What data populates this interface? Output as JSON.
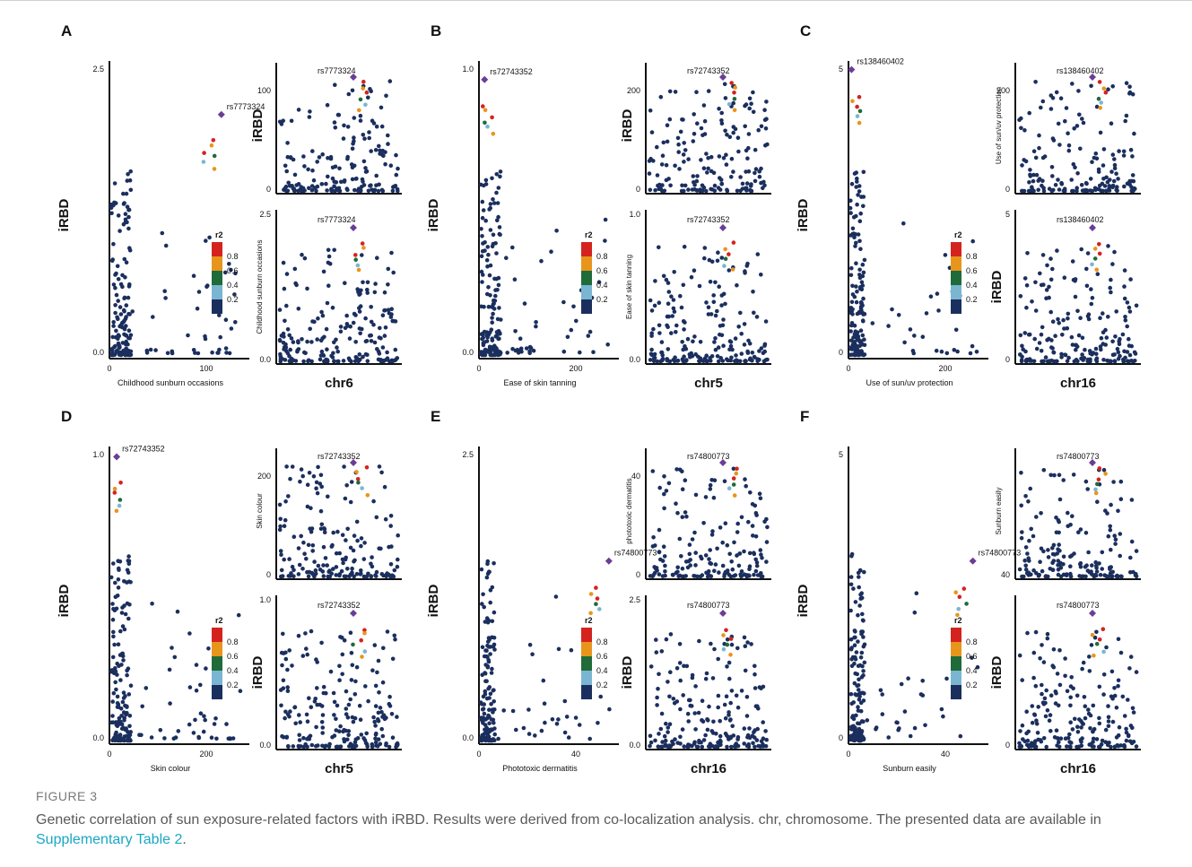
{
  "colors": {
    "c1": "#1b2f5e",
    "c2": "#7ab6d2",
    "c3": "#1f6b3a",
    "c4": "#e8951c",
    "c5": "#d4231f",
    "lead": "#6a3d96",
    "axis": "#111111"
  },
  "legend": {
    "title": "r2",
    "ticks": [
      "0.8",
      "0.6",
      "0.4",
      "0.2"
    ]
  },
  "chart_data": [
    {
      "type": "scatter",
      "panel": "A",
      "left": {
        "xlabel": "Childhood sunburn occasions",
        "ylabel": "iRBD",
        "xticks": [
          "0",
          "100"
        ],
        "yticks": [
          "0.0",
          "2.5"
        ],
        "xlim": [
          0,
          140
        ],
        "ylim": [
          0,
          2.5
        ],
        "lead_snp": "rs7773324",
        "lead_point": [
          112,
          2.05
        ]
      },
      "right_top": {
        "ylabel": "iRBD",
        "yticks": [
          "0",
          "100"
        ],
        "lead_snp": "rs7773324"
      },
      "right_bottom": {
        "ylabel": "Childhood sunburn occasions",
        "yticks": [
          "0.0",
          "2.5"
        ],
        "lead_snp": "rs7773324"
      },
      "chr": "chr6"
    },
    {
      "type": "scatter",
      "panel": "B",
      "left": {
        "xlabel": "Ease of skin tanning",
        "ylabel": "iRBD",
        "xticks": [
          "0",
          "200"
        ],
        "yticks": [
          "0.0",
          "1.0"
        ],
        "xlim": [
          0,
          200
        ],
        "ylim": [
          0,
          1.6
        ],
        "lead_snp": "rs72743352",
        "lead_point": [
          8,
          1.5
        ]
      },
      "right_top": {
        "ylabel": "iRBD",
        "yticks": [
          "0",
          "200"
        ],
        "lead_snp": "rs72743352"
      },
      "right_bottom": {
        "ylabel": "Ease of skin tanning",
        "yticks": [
          "0.0",
          "1.0"
        ],
        "lead_snp": "rs72743352"
      },
      "chr": "chr5"
    },
    {
      "type": "scatter",
      "panel": "C",
      "left": {
        "xlabel": "Use of sun/uv protection",
        "ylabel": "iRBD",
        "xticks": [
          "0",
          "200"
        ],
        "yticks": [
          "0",
          "5"
        ],
        "xlim": [
          0,
          230
        ],
        "ylim": [
          0,
          5.2
        ],
        "lead_snp": "rs138460402",
        "lead_point": [
          5,
          5.05
        ]
      },
      "right_top": {
        "ylabel": "Use of sun/uv protection",
        "yticks": [
          "0",
          "200"
        ],
        "lead_snp": "rs138460402"
      },
      "right_bottom": {
        "ylabel": "iRBD",
        "yticks": [
          "0",
          "5"
        ],
        "lead_snp": "rs138460402"
      },
      "chr": "chr16"
    },
    {
      "type": "scatter",
      "panel": "D",
      "left": {
        "xlabel": "Skin colour",
        "ylabel": "iRBD",
        "xticks": [
          "0",
          "200"
        ],
        "yticks": [
          "0.0",
          "1.0"
        ],
        "xlim": [
          0,
          290
        ],
        "ylim": [
          0,
          1.45
        ],
        "lead_snp": "rs72743352",
        "lead_point": [
          15,
          1.4
        ]
      },
      "right_top": {
        "ylabel": "Skin colour",
        "yticks": [
          "0",
          "200"
        ],
        "lead_snp": "rs72743352"
      },
      "right_bottom": {
        "ylabel": "iRBD",
        "yticks": [
          "0.0",
          "1.0"
        ],
        "lead_snp": "rs72743352"
      },
      "chr": "chr5"
    },
    {
      "type": "scatter",
      "panel": "E",
      "left": {
        "xlabel": "Phototoxic dermatitis",
        "ylabel": "iRBD",
        "xticks": [
          "0",
          "40"
        ],
        "yticks": [
          "0.0",
          "2.5"
        ],
        "xlim": [
          0,
          42
        ],
        "ylim": [
          0,
          2.6
        ],
        "lead_snp": "rs74800773",
        "lead_point": [
          39,
          1.6
        ]
      },
      "right_top": {
        "ylabel": "phototoxic dermatitis",
        "yticks": [
          "0",
          "40"
        ],
        "lead_snp": "rs74800773"
      },
      "right_bottom": {
        "ylabel": "iRBD",
        "yticks": [
          "0.0",
          "2.5"
        ],
        "lead_snp": "rs74800773"
      },
      "chr": "chr16"
    },
    {
      "type": "scatter",
      "panel": "F",
      "left": {
        "xlabel": "Sunburn easily",
        "ylabel": "iRBD",
        "xticks": [
          "0",
          "40"
        ],
        "yticks": [
          "0",
          "5"
        ],
        "xlim": [
          0,
          45
        ],
        "ylim": [
          0,
          5.2
        ],
        "lead_snp": "rs74800773",
        "lead_point": [
          40,
          3.2
        ]
      },
      "right_top": {
        "ylabel": "Sunburn easily",
        "yticks": [
          "40"
        ],
        "lead_snp": "rs74800773"
      },
      "right_bottom": {
        "ylabel": "iRBD",
        "yticks": [
          "0"
        ],
        "lead_snp": "rs74800773"
      },
      "chr": "chr16"
    }
  ],
  "figure_label": "FIGURE 3",
  "caption_text": "Genetic correlation of sun exposure-related factors with iRBD. Results were derived from co-localization analysis. chr, chromosome. The presented data are available in ",
  "caption_link": "Supplementary Table 2",
  "caption_end": "."
}
